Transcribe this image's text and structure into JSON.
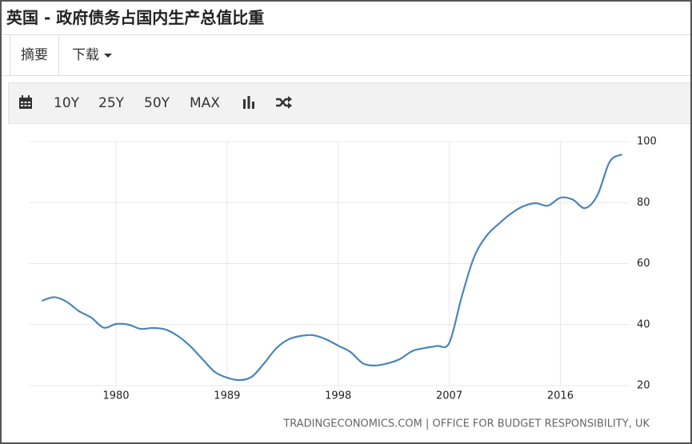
{
  "header": {
    "title": "英国 - 政府债务占国内生产总值比重"
  },
  "tabs": [
    "摘要",
    "下载"
  ],
  "toolbar": [
    "10Y",
    "25Y",
    "50Y",
    "MAX"
  ],
  "chart_data": {
    "type": "line",
    "x": [
      1974,
      1975,
      1976,
      1977,
      1978,
      1979,
      1980,
      1981,
      1982,
      1983,
      1984,
      1985,
      1986,
      1987,
      1988,
      1989,
      1990,
      1991,
      1992,
      1993,
      1994,
      1995,
      1996,
      1997,
      1998,
      1999,
      2000,
      2001,
      2002,
      2003,
      2004,
      2005,
      2006,
      2007,
      2008,
      2009,
      2010,
      2011,
      2012,
      2013,
      2014,
      2015,
      2016,
      2017,
      2018,
      2019,
      2020,
      2021
    ],
    "series": [
      {
        "name": "英国",
        "color": "#4a86b8",
        "values": [
          47.8,
          49,
          47.5,
          44.4,
          42.3,
          39,
          40.2,
          40,
          38.6,
          38.9,
          38.4,
          36.3,
          33,
          28.7,
          24.5,
          22.6,
          21.8,
          22.9,
          27.3,
          32.3,
          35.2,
          36.3,
          36.5,
          35.2,
          33.1,
          31,
          27.3,
          26.6,
          27.3,
          28.7,
          31.3,
          32.3,
          33,
          34,
          49,
          62,
          69,
          73,
          76.4,
          78.8,
          79.8,
          79,
          81.6,
          81,
          78.2,
          82.4,
          93.4,
          95.8
        ]
      }
    ],
    "xlim": [
      1973,
      2022
    ],
    "xticks": [
      1980,
      1989,
      1998,
      2007,
      2016
    ],
    "ylim": [
      20,
      100
    ],
    "yticks": [
      20,
      40,
      60,
      80,
      100
    ],
    "grid": true,
    "source": "TRADINGECONOMICS.COM | OFFICE FOR BUDGET RESPONSIBILITY, UK"
  }
}
